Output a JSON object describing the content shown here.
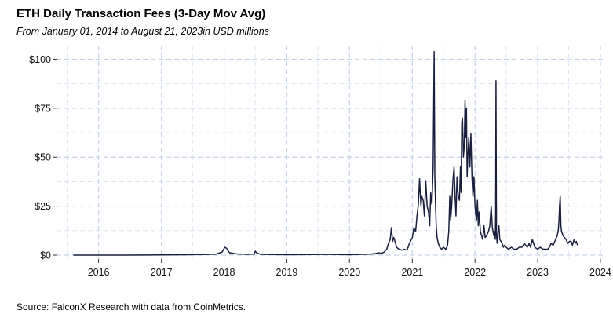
{
  "chart_data": {
    "type": "line",
    "title": "ETH Daily Transaction Fees (3-Day Mov Avg)",
    "subtitle": "From January 01, 2014 to August 21, 2023in USD millions",
    "source": "Source: FalconX Research with data from CoinMetrics.",
    "xlabel": "",
    "ylabel": "",
    "x_ticks": [
      "2016",
      "2017",
      "2018",
      "2019",
      "2020",
      "2021",
      "2022",
      "2023",
      "2024"
    ],
    "y_ticks": [
      "$0",
      "$25",
      "$50",
      "$75",
      "$100"
    ],
    "xlim": [
      "2015-05-01",
      "2024-01-15"
    ],
    "ylim": [
      -2,
      107
    ],
    "grid": true,
    "line_color": "#1a1f3d",
    "grid_color": "#c5d3e8",
    "series": [
      {
        "x": [
          "2015-08-07",
          "2016-01-01",
          "2016-06-01",
          "2017-01-01",
          "2017-06-01",
          "2017-09-01",
          "2017-11-15",
          "2017-12-20",
          "2018-01-05",
          "2018-01-15",
          "2018-02-01",
          "2018-03-15",
          "2018-05-15",
          "2018-06-25",
          "2018-07-01",
          "2018-07-10",
          "2018-08-01",
          "2018-10-01",
          "2019-01-01",
          "2019-06-01",
          "2019-09-01",
          "2020-01-01",
          "2020-03-15",
          "2020-05-01",
          "2020-06-01",
          "2020-06-20",
          "2020-07-01",
          "2020-07-20",
          "2020-08-05",
          "2020-08-15",
          "2020-08-25",
          "2020-09-01",
          "2020-09-08",
          "2020-09-15",
          "2020-09-25",
          "2020-10-01",
          "2020-10-15",
          "2020-11-01",
          "2020-11-15",
          "2020-12-01",
          "2020-12-15",
          "2021-01-01",
          "2021-01-10",
          "2021-01-20",
          "2021-01-28",
          "2021-02-05",
          "2021-02-12",
          "2021-02-20",
          "2021-02-25",
          "2021-03-05",
          "2021-03-12",
          "2021-03-20",
          "2021-03-28",
          "2021-04-05",
          "2021-04-12",
          "2021-04-18",
          "2021-04-25",
          "2021-05-02",
          "2021-05-08",
          "2021-05-12",
          "2021-05-16",
          "2021-05-20",
          "2021-05-25",
          "2021-06-01",
          "2021-06-10",
          "2021-06-20",
          "2021-07-01",
          "2021-07-15",
          "2021-07-25",
          "2021-08-01",
          "2021-08-07",
          "2021-08-12",
          "2021-08-18",
          "2021-08-25",
          "2021-09-01",
          "2021-09-07",
          "2021-09-12",
          "2021-09-18",
          "2021-09-25",
          "2021-10-02",
          "2021-10-08",
          "2021-10-12",
          "2021-10-16",
          "2021-10-20",
          "2021-10-25",
          "2021-10-30",
          "2021-11-04",
          "2021-11-08",
          "2021-11-12",
          "2021-11-16",
          "2021-11-20",
          "2021-11-26",
          "2021-12-02",
          "2021-12-08",
          "2021-12-14",
          "2021-12-20",
          "2021-12-26",
          "2022-01-01",
          "2022-01-06",
          "2022-01-10",
          "2022-01-15",
          "2022-01-20",
          "2022-01-25",
          "2022-02-01",
          "2022-02-08",
          "2022-02-15",
          "2022-02-22",
          "2022-03-01",
          "2022-03-10",
          "2022-03-20",
          "2022-03-28",
          "2022-04-05",
          "2022-04-12",
          "2022-04-20",
          "2022-04-25",
          "2022-04-29",
          "2022-05-01",
          "2022-05-03",
          "2022-05-06",
          "2022-05-10",
          "2022-05-15",
          "2022-05-20",
          "2022-05-25",
          "2022-06-01",
          "2022-06-08",
          "2022-06-15",
          "2022-06-22",
          "2022-07-01",
          "2022-07-15",
          "2022-08-01",
          "2022-08-15",
          "2022-09-01",
          "2022-09-15",
          "2022-10-01",
          "2022-10-15",
          "2022-11-01",
          "2022-11-08",
          "2022-11-12",
          "2022-11-20",
          "2022-12-01",
          "2022-12-15",
          "2023-01-01",
          "2023-01-15",
          "2023-02-01",
          "2023-02-15",
          "2023-03-01",
          "2023-03-10",
          "2023-03-20",
          "2023-04-01",
          "2023-04-15",
          "2023-04-25",
          "2023-05-01",
          "2023-05-05",
          "2023-05-08",
          "2023-05-12",
          "2023-05-16",
          "2023-05-20",
          "2023-05-28",
          "2023-06-05",
          "2023-06-15",
          "2023-06-25",
          "2023-07-05",
          "2023-07-15",
          "2023-07-22",
          "2023-08-01",
          "2023-08-08",
          "2023-08-14",
          "2023-08-21"
        ],
        "values": [
          0,
          0,
          0,
          0.1,
          0.2,
          0.3,
          0.5,
          1.5,
          4,
          3.5,
          1.2,
          0.6,
          0.4,
          0.5,
          2,
          1.2,
          0.4,
          0.3,
          0.2,
          0.3,
          0.4,
          0.2,
          0.4,
          0.5,
          0.8,
          1.2,
          0.8,
          1.5,
          3,
          6,
          8,
          14,
          7,
          9,
          6,
          4,
          3,
          2.5,
          3,
          2.5,
          6,
          9,
          14,
          12,
          20,
          26,
          39,
          25,
          30,
          28,
          20,
          38,
          25,
          22,
          15,
          32,
          26,
          45,
          104,
          40,
          26,
          15,
          9,
          6,
          4,
          3,
          4,
          3,
          5,
          12,
          30,
          18,
          25,
          38,
          45,
          30,
          20,
          40,
          30,
          28,
          45,
          32,
          68,
          70,
          50,
          55,
          79,
          60,
          75,
          40,
          50,
          60,
          45,
          62,
          40,
          30,
          40,
          25,
          20,
          18,
          28,
          15,
          22,
          12,
          10,
          8,
          15,
          9,
          10,
          12,
          15,
          25,
          14,
          10,
          12,
          8,
          20,
          89,
          10,
          6,
          12,
          15,
          8,
          7,
          6,
          4,
          5,
          4,
          3,
          4,
          3,
          3,
          4,
          4,
          6,
          4,
          5,
          6,
          4,
          8,
          4,
          3,
          4,
          3,
          3,
          3,
          4,
          6,
          5,
          8,
          10,
          13,
          18,
          25,
          30,
          15,
          12,
          10,
          9,
          8,
          6,
          7,
          7,
          5,
          8,
          6,
          7,
          5
        ]
      }
    ]
  }
}
